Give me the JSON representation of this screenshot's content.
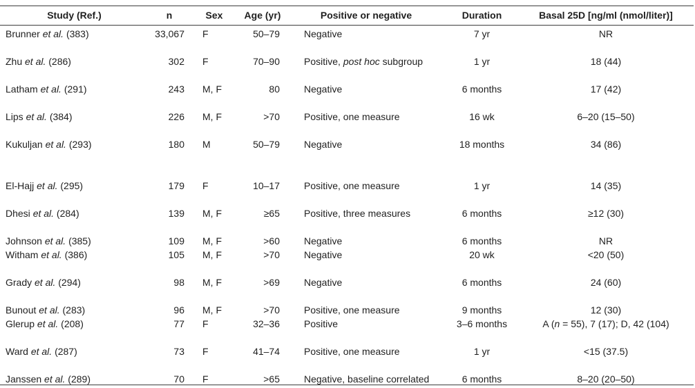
{
  "table": {
    "column_keys": [
      "study",
      "n",
      "sex",
      "age",
      "outcome",
      "duration",
      "basal"
    ],
    "headers": [
      "Study (Ref.)",
      "n",
      "Sex",
      "Age (yr)",
      "Positive or negative",
      "Duration",
      "Basal 25D [ng/ml (nmol/liter)]"
    ],
    "rows": [
      {
        "spacing": "normal",
        "study": "Brunner *et al.* (383)",
        "n": "33,067",
        "sex": "F",
        "age": "50–79",
        "outcome": "Negative",
        "duration": "7 yr",
        "basal": "NR"
      },
      {
        "spacing": "normal",
        "study": "Zhu *et al.* (286)",
        "n": "302",
        "sex": "F",
        "age": "70–90",
        "outcome": "Positive, *post hoc* subgroup",
        "duration": "1 yr",
        "basal": "18 (44)"
      },
      {
        "spacing": "normal",
        "study": "Latham *et al.* (291)",
        "n": "243",
        "sex": "M, F",
        "age": "80",
        "outcome": "Negative",
        "duration": "6 months",
        "basal": "17 (42)"
      },
      {
        "spacing": "normal",
        "study": "Lips *et al.* (384)",
        "n": "226",
        "sex": "M, F",
        "age": ">70",
        "outcome": "Positive, one measure",
        "duration": "16 wk",
        "basal": "6–20 (15–50)"
      },
      {
        "spacing": "tall",
        "study": "Kukuljan *et al.* (293)",
        "n": "180",
        "sex": "M",
        "age": "50–79",
        "outcome": "Negative",
        "duration": "18 months",
        "basal": "34 (86)"
      },
      {
        "spacing": "normal",
        "study": "El-Hajj *et al.* (295)",
        "n": "179",
        "sex": "F",
        "age": "10–17",
        "outcome": "Positive, one measure",
        "duration": "1 yr",
        "basal": "14 (35)"
      },
      {
        "spacing": "normal",
        "study": "Dhesi *et al.* (284)",
        "n": "139",
        "sex": "M, F",
        "age": "≥65",
        "outcome": "Positive, three measures",
        "duration": "6 months",
        "basal": "≥12 (30)"
      },
      {
        "spacing": "short",
        "study": "Johnson *et al.* (385)",
        "n": "109",
        "sex": "M, F",
        "age": ">60",
        "outcome": "Negative",
        "duration": "6 months",
        "basal": "NR"
      },
      {
        "spacing": "normal",
        "study": "Witham *et al.* (386)",
        "n": "105",
        "sex": "M, F",
        "age": ">70",
        "outcome": "Negative",
        "duration": "20 wk",
        "basal": "<20 (50)"
      },
      {
        "spacing": "normal",
        "study": "Grady *et al.* (294)",
        "n": "98",
        "sex": "M, F",
        "age": ">69",
        "outcome": "Negative",
        "duration": "6 months",
        "basal": "24 (60)"
      },
      {
        "spacing": "short",
        "study": "Bunout *et al.* (283)",
        "n": "96",
        "sex": "M, F",
        "age": ">70",
        "outcome": "Positive, one measure",
        "duration": "9 months",
        "basal": "12 (30)"
      },
      {
        "spacing": "normal",
        "study": "Glerup *et al.* (208)",
        "n": "77",
        "sex": "F",
        "age": "32–36",
        "outcome": "Positive",
        "duration": "3–6 months",
        "basal": "A (*n* = 55), 7 (17); D, 42 (104)"
      },
      {
        "spacing": "normal",
        "study": "Ward *et al.* (287)",
        "n": "73",
        "sex": "F",
        "age": "41–74",
        "outcome": "Positive, one measure",
        "duration": "1 yr",
        "basal": "<15 (37.5)"
      },
      {
        "spacing": "short",
        "study": "Janssen *et al.* (289)",
        "n": "70",
        "sex": "F",
        "age": ">65",
        "outcome": "Negative, baseline correlated",
        "duration": "6 months",
        "basal": "8–20 (20–50)"
      }
    ]
  }
}
